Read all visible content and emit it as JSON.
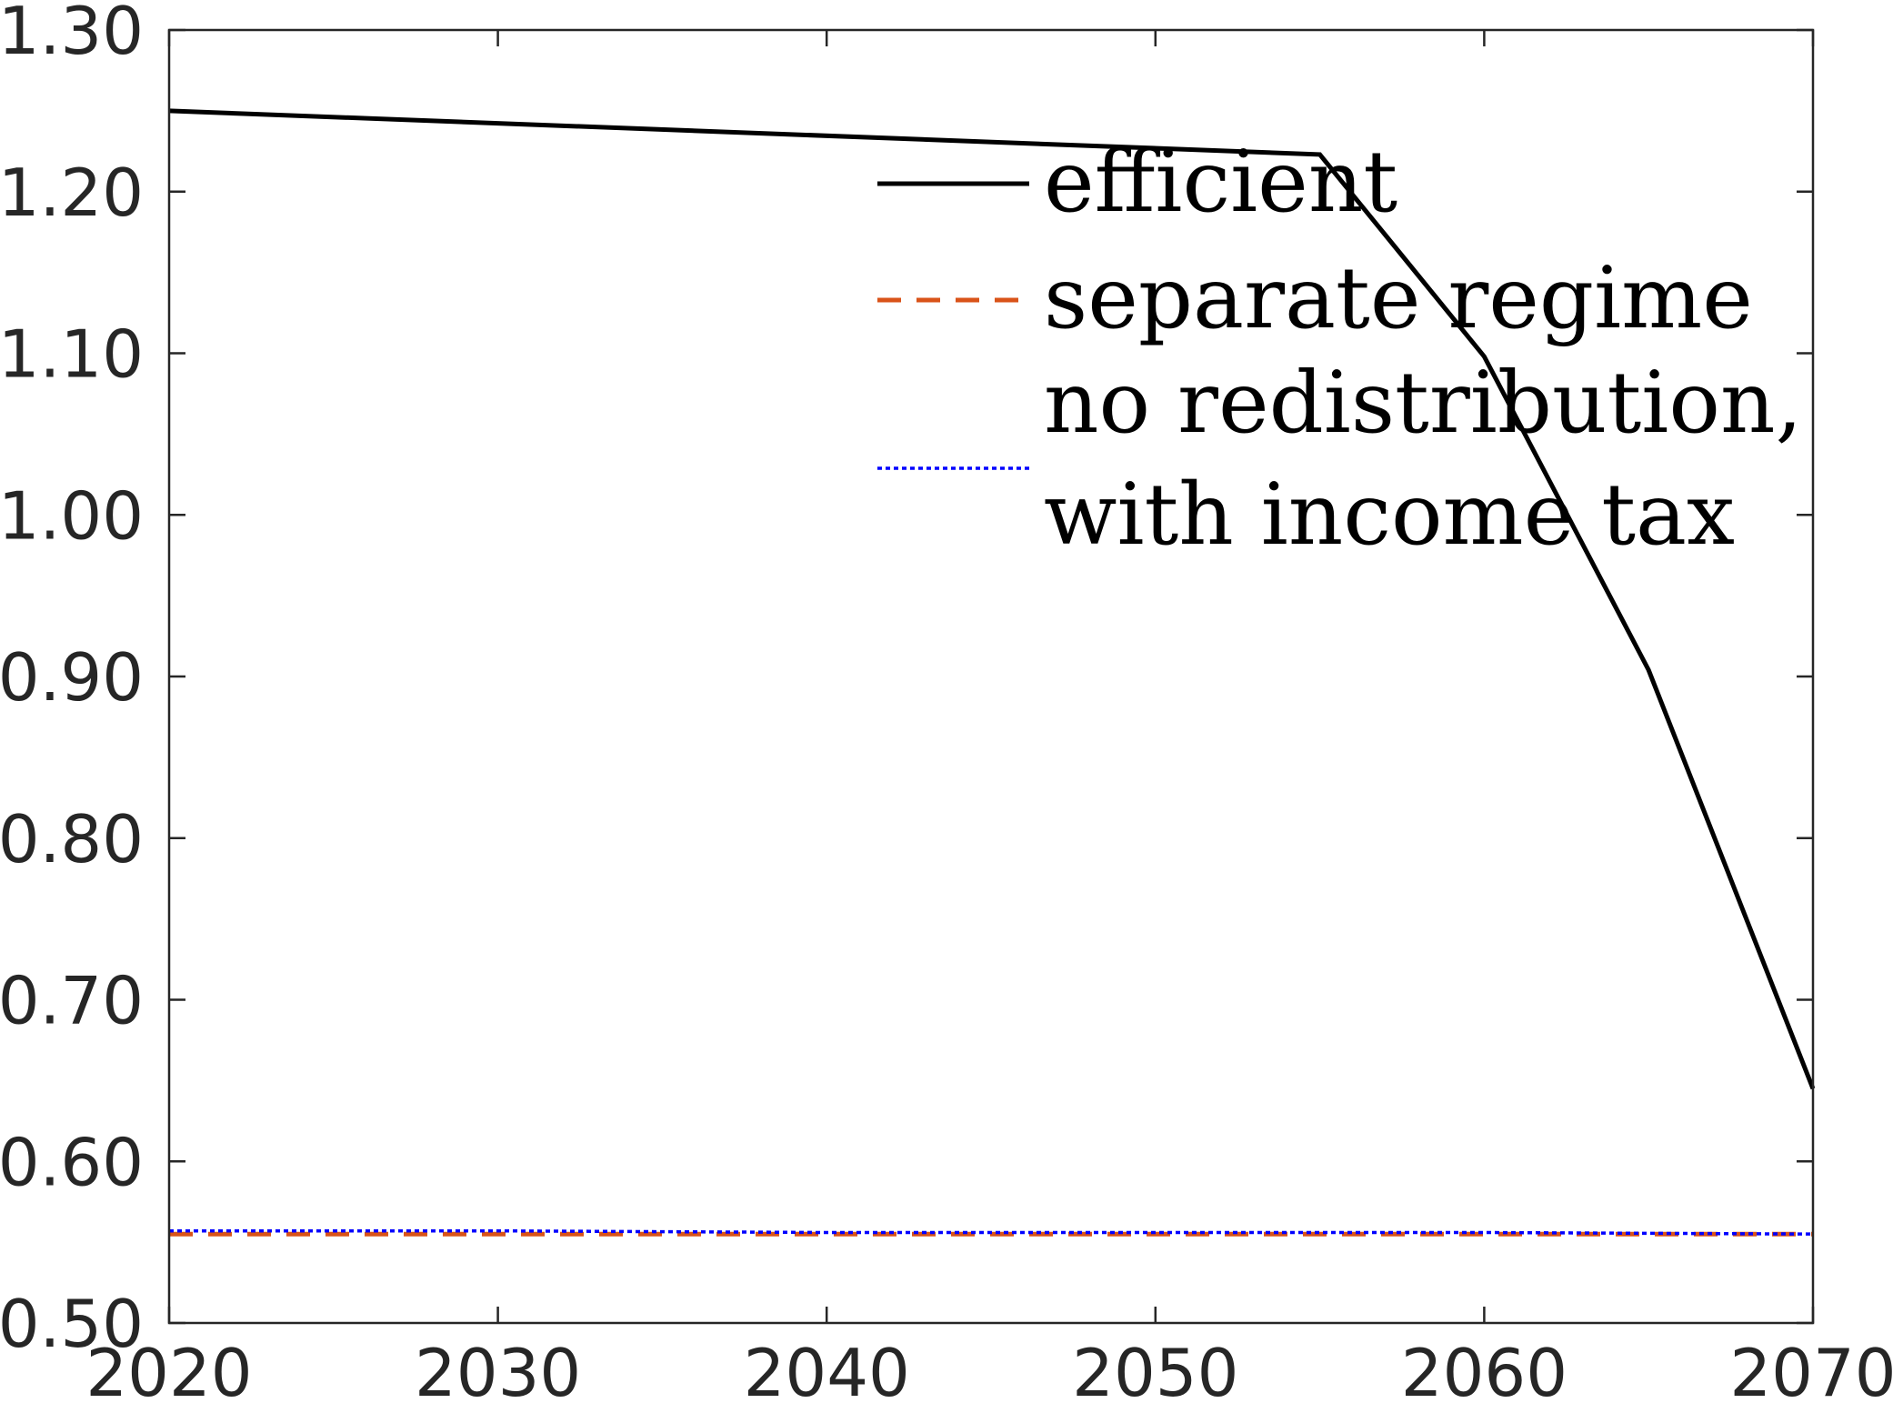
{
  "chart_data": {
    "type": "line",
    "title": "",
    "xlabel": "",
    "ylabel": "",
    "xlim": [
      2020,
      2070
    ],
    "ylim": [
      0.5,
      1.3
    ],
    "xticks": [
      "2020",
      "2030",
      "2040",
      "2050",
      "2060",
      "2070"
    ],
    "yticks": [
      "0.50",
      "0.60",
      "0.70",
      "0.80",
      "0.90",
      "1.00",
      "1.10",
      "1.20",
      "1.30"
    ],
    "grid": false,
    "legend_position": "top-right",
    "series": [
      {
        "name": "efficient",
        "style": "solid",
        "color": "#000000",
        "x": [
          2020,
          2055,
          2060,
          2065,
          2070
        ],
        "y": [
          1.25,
          1.223,
          1.098,
          0.904,
          0.645
        ]
      },
      {
        "name": "separate regime",
        "style": "dashed",
        "color": "#D95319",
        "x": [
          2020,
          2030,
          2040,
          2050,
          2060,
          2070
        ],
        "y": [
          0.555,
          0.555,
          0.555,
          0.555,
          0.555,
          0.555
        ]
      },
      {
        "name": "no redistribution, with income tax",
        "legend_lines": [
          "no redistribution,",
          "with income tax"
        ],
        "style": "dotted",
        "color": "#0000FF",
        "x": [
          2020,
          2030,
          2040,
          2050,
          2060,
          2070
        ],
        "y": [
          0.557,
          0.557,
          0.556,
          0.556,
          0.556,
          0.555
        ]
      }
    ]
  }
}
